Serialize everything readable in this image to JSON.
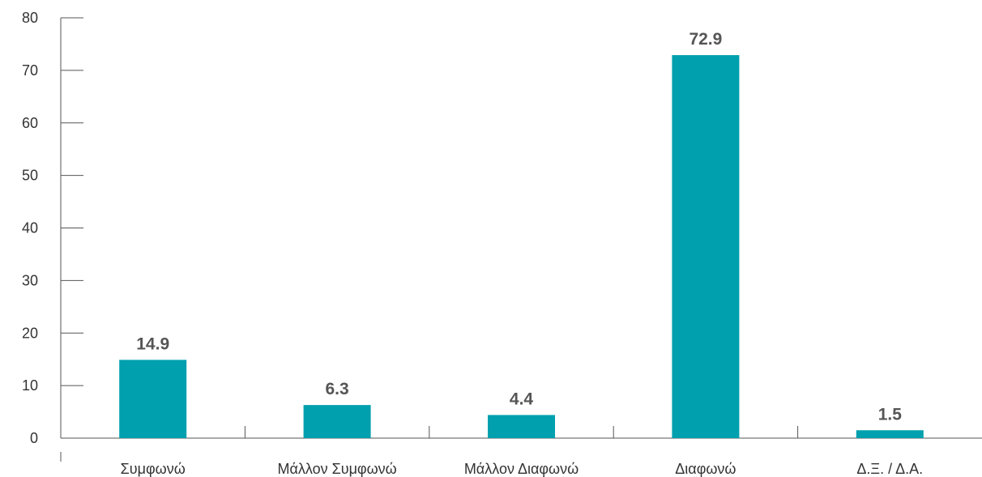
{
  "chart_data": {
    "type": "bar",
    "categories": [
      "Συμφωνώ",
      "Μάλλον Συμφωνώ",
      "Μάλλον Διαφωνώ",
      "Διαφωνώ",
      "Δ.Ξ. / Δ.Α."
    ],
    "values": [
      14.9,
      6.3,
      4.4,
      72.9,
      1.5
    ],
    "value_labels": [
      "14.9",
      "6.3",
      "4.4",
      "72.9",
      "1.5"
    ],
    "y_ticks": [
      0,
      10,
      20,
      30,
      40,
      50,
      60,
      70,
      80
    ],
    "y_tick_labels": [
      "0",
      "10",
      "20",
      "30",
      "40",
      "50",
      "60",
      "70",
      "80"
    ],
    "ylim": [
      0,
      80
    ],
    "title": "",
    "xlabel": "",
    "ylabel": "",
    "grid": false,
    "legend": "none",
    "bar_color": "#00A0AE"
  }
}
